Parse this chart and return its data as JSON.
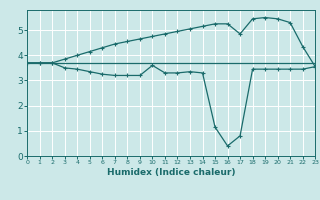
{
  "x": [
    0,
    1,
    2,
    3,
    4,
    5,
    6,
    7,
    8,
    9,
    10,
    11,
    12,
    13,
    14,
    15,
    16,
    17,
    18,
    19,
    20,
    21,
    22,
    23
  ],
  "line1": [
    3.7,
    3.7,
    3.7,
    3.7,
    3.7,
    3.7,
    3.7,
    3.7,
    3.7,
    3.7,
    3.7,
    3.7,
    3.7,
    3.7,
    3.7,
    3.7,
    3.7,
    3.7,
    3.7,
    3.7,
    3.7,
    3.7,
    3.7,
    3.7
  ],
  "line2": [
    3.7,
    3.7,
    3.7,
    3.5,
    3.45,
    3.35,
    3.25,
    3.2,
    3.2,
    3.2,
    3.6,
    3.3,
    3.3,
    3.35,
    3.3,
    1.15,
    0.4,
    0.8,
    3.45,
    3.45,
    3.45,
    3.45,
    3.45,
    3.55
  ],
  "line3": [
    3.7,
    3.7,
    3.7,
    3.85,
    4.0,
    4.15,
    4.3,
    4.45,
    4.55,
    4.65,
    4.75,
    4.85,
    4.95,
    5.05,
    5.15,
    5.25,
    5.25,
    4.85,
    5.45,
    5.5,
    5.45,
    5.3,
    4.35,
    3.55
  ],
  "bg_color": "#cce8e8",
  "line_color": "#1a6b6b",
  "grid_color": "#ffffff",
  "xlabel": "Humidex (Indice chaleur)",
  "ylim": [
    0,
    5.8
  ],
  "xlim": [
    0,
    23
  ],
  "yticks": [
    0,
    1,
    2,
    3,
    4,
    5
  ],
  "xticks": [
    0,
    1,
    2,
    3,
    4,
    5,
    6,
    7,
    8,
    9,
    10,
    11,
    12,
    13,
    14,
    15,
    16,
    17,
    18,
    19,
    20,
    21,
    22,
    23
  ]
}
